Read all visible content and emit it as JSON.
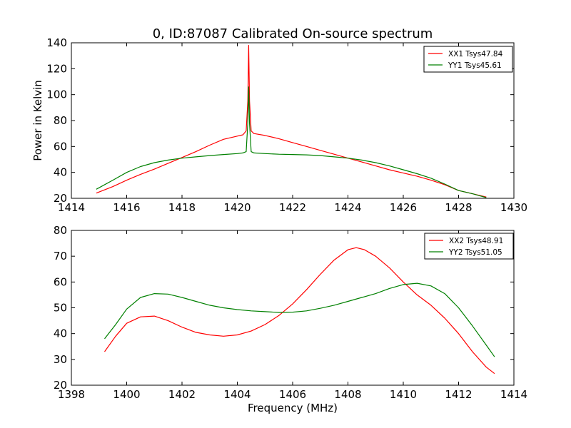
{
  "figure": {
    "title": "0, ID:87087 Calibrated On-source spectrum",
    "ylabel": "Power in Kelvin",
    "xlabel": "Frequency (MHz)"
  },
  "chart_data": [
    {
      "type": "line",
      "title": "0, ID:87087 Calibrated On-source spectrum",
      "xlabel": "",
      "ylabel": "Power in Kelvin",
      "xlim": [
        1414,
        1430
      ],
      "ylim": [
        20,
        140
      ],
      "xticks": [
        1414,
        1416,
        1418,
        1420,
        1422,
        1424,
        1426,
        1428,
        1430
      ],
      "yticks": [
        20,
        40,
        60,
        80,
        100,
        120,
        140
      ],
      "grid": false,
      "legend_position": "top-right",
      "series": [
        {
          "name": "XX1 Tsys47.84",
          "color": "#ff0000",
          "x": [
            1414.9,
            1415.5,
            1416.0,
            1416.5,
            1417.0,
            1417.5,
            1418.0,
            1418.5,
            1419.0,
            1419.5,
            1420.0,
            1420.2,
            1420.32,
            1420.38,
            1420.41,
            1420.44,
            1420.5,
            1420.6,
            1421.0,
            1421.5,
            1422.0,
            1422.5,
            1423.0,
            1423.5,
            1424.0,
            1424.5,
            1425.0,
            1425.5,
            1426.0,
            1426.5,
            1427.0,
            1427.5,
            1428.0,
            1428.5,
            1429.0
          ],
          "values": [
            24,
            29,
            34,
            38.5,
            42.5,
            47,
            51.5,
            56,
            61,
            65.5,
            68,
            69,
            72,
            95,
            138,
            95,
            72,
            70,
            68.5,
            66,
            63,
            60,
            57,
            54,
            51,
            48,
            45,
            42,
            39.5,
            37,
            34,
            30.5,
            26,
            23.5,
            21
          ]
        },
        {
          "name": "YY1 Tsys45.61",
          "color": "#008000",
          "x": [
            1414.9,
            1415.5,
            1416.0,
            1416.5,
            1417.0,
            1417.5,
            1418.0,
            1418.5,
            1419.0,
            1419.5,
            1420.0,
            1420.2,
            1420.32,
            1420.38,
            1420.41,
            1420.44,
            1420.5,
            1420.6,
            1421.0,
            1421.5,
            1422.0,
            1422.5,
            1423.0,
            1423.5,
            1424.0,
            1424.5,
            1425.0,
            1425.5,
            1426.0,
            1426.5,
            1427.0,
            1427.5,
            1428.0,
            1428.5,
            1429.0
          ],
          "values": [
            27,
            34,
            40,
            44.5,
            47.5,
            49.5,
            51,
            52,
            53,
            53.8,
            54.5,
            55,
            56,
            78,
            106,
            78,
            56,
            55,
            54.5,
            54,
            53.8,
            53.5,
            53,
            52,
            51,
            49.5,
            47.5,
            45,
            42,
            39,
            35.5,
            31,
            26,
            23.5,
            20.5
          ]
        }
      ]
    },
    {
      "type": "line",
      "title": "",
      "xlabel": "Frequency (MHz)",
      "ylabel": "",
      "xlim": [
        1398,
        1414
      ],
      "ylim": [
        20,
        80
      ],
      "xticks": [
        1398,
        1400,
        1402,
        1404,
        1406,
        1408,
        1410,
        1412,
        1414
      ],
      "yticks": [
        20,
        30,
        40,
        50,
        60,
        70,
        80
      ],
      "grid": false,
      "legend_position": "top-right",
      "series": [
        {
          "name": "XX2 Tsys48.91",
          "color": "#ff0000",
          "x": [
            1399.2,
            1399.6,
            1400.0,
            1400.5,
            1401.0,
            1401.5,
            1402.0,
            1402.5,
            1403.0,
            1403.5,
            1404.0,
            1404.5,
            1405.0,
            1405.5,
            1406.0,
            1406.5,
            1407.0,
            1407.5,
            1408.0,
            1408.3,
            1408.6,
            1409.0,
            1409.5,
            1410.0,
            1410.5,
            1411.0,
            1411.5,
            1412.0,
            1412.5,
            1413.0,
            1413.3
          ],
          "values": [
            33,
            39,
            44,
            46.5,
            46.8,
            45,
            42.5,
            40.5,
            39.5,
            39,
            39.5,
            41,
            43.5,
            47,
            51.5,
            57,
            63,
            68.5,
            72.5,
            73.3,
            72.5,
            70,
            65.5,
            60,
            55,
            51,
            46,
            40,
            33,
            27,
            24.5
          ]
        },
        {
          "name": "YY2 Tsys51.05",
          "color": "#008000",
          "x": [
            1399.2,
            1399.6,
            1400.0,
            1400.5,
            1401.0,
            1401.5,
            1402.0,
            1402.5,
            1403.0,
            1403.5,
            1404.0,
            1404.5,
            1405.0,
            1405.5,
            1406.0,
            1406.5,
            1407.0,
            1407.5,
            1408.0,
            1408.5,
            1409.0,
            1409.5,
            1410.0,
            1410.5,
            1411.0,
            1411.5,
            1412.0,
            1412.5,
            1413.0,
            1413.3
          ],
          "values": [
            38,
            43.5,
            49.5,
            54,
            55.5,
            55.3,
            54,
            52.5,
            51,
            50,
            49.3,
            48.8,
            48.5,
            48.2,
            48.3,
            48.8,
            49.8,
            51,
            52.5,
            54,
            55.5,
            57.5,
            59,
            59.5,
            58.5,
            55.5,
            50,
            43,
            35.5,
            31
          ]
        }
      ]
    }
  ]
}
